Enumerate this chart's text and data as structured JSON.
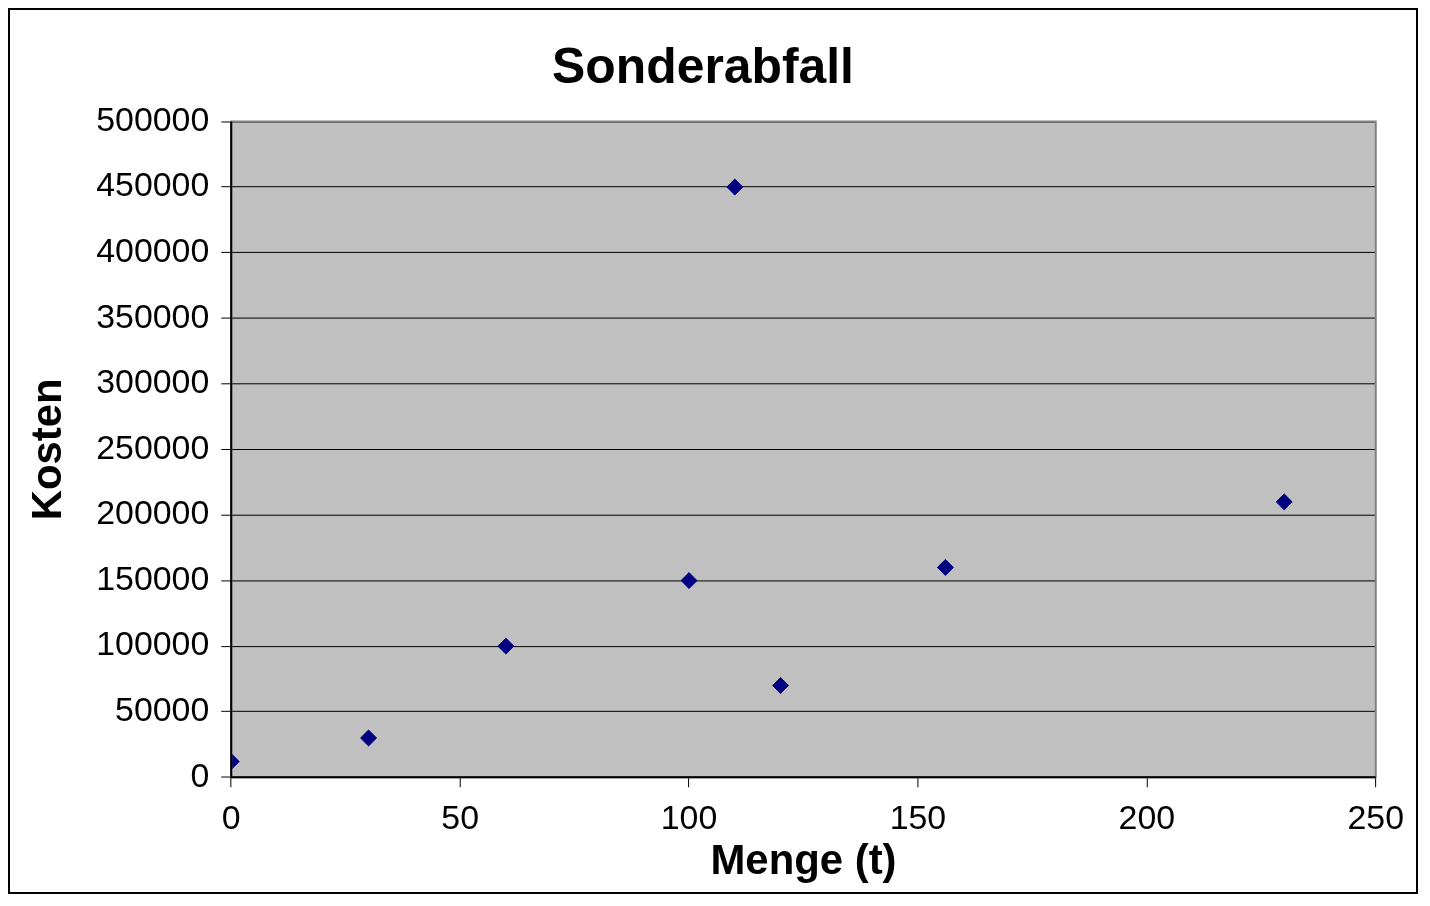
{
  "chart_data": {
    "type": "scatter",
    "title": "Sonderabfall",
    "xlabel": "Menge (t)",
    "ylabel": "Kosten",
    "series": [
      {
        "color": "#000080",
        "x": [
          0,
          30,
          60,
          100,
          110,
          120,
          156,
          230
        ],
        "values": [
          12000,
          30000,
          100000,
          150000,
          450000,
          70000,
          160000,
          210000
        ]
      }
    ],
    "xlim": [
      0,
      250
    ],
    "xticks": [
      0,
      50,
      100,
      150,
      200,
      250
    ],
    "ylim": [
      0,
      500000
    ],
    "yticks": [
      0,
      50000,
      100000,
      150000,
      200000,
      250000,
      300000,
      350000,
      400000,
      450000,
      500000
    ],
    "grid": "y",
    "marker": "diamond",
    "legend": false
  }
}
